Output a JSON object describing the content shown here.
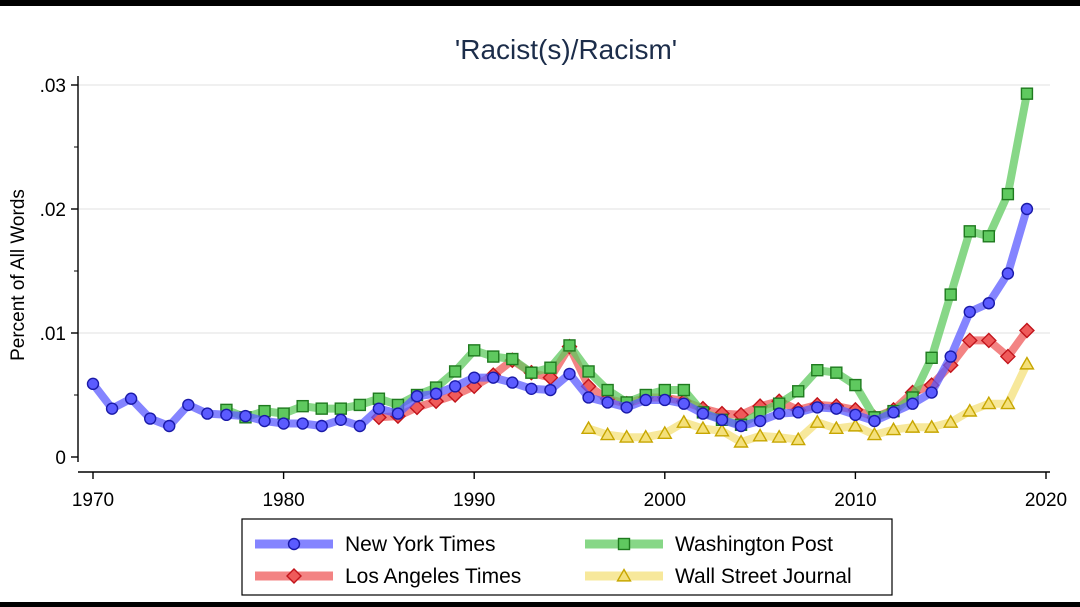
{
  "chart_data": {
    "type": "line",
    "title": "'Racist(s)/Racism'",
    "xlabel": "",
    "ylabel": "Percent of All Words",
    "xlim": [
      1970,
      2020
    ],
    "ylim": [
      0,
      0.03
    ],
    "xticks": [
      1970,
      1980,
      1990,
      2000,
      2010,
      2020
    ],
    "xtick_labels": [
      "1970",
      "1980",
      "1990",
      "2000",
      "2010",
      "2020"
    ],
    "yticks": [
      0,
      0.01,
      0.02,
      0.03
    ],
    "ytick_labels": [
      "0",
      ".01",
      ".02",
      ".03"
    ],
    "grid": true,
    "legend_position": "bottom",
    "series": [
      {
        "name": "New York Times",
        "color": "#5b5bff",
        "marker": "circle",
        "x": [
          1970,
          1971,
          1972,
          1973,
          1974,
          1975,
          1976,
          1977,
          1978,
          1979,
          1980,
          1981,
          1982,
          1983,
          1984,
          1985,
          1986,
          1987,
          1988,
          1989,
          1990,
          1991,
          1992,
          1993,
          1994,
          1995,
          1996,
          1997,
          1998,
          1999,
          2000,
          2001,
          2002,
          2003,
          2004,
          2005,
          2006,
          2007,
          2008,
          2009,
          2010,
          2011,
          2012,
          2013,
          2014,
          2015,
          2016,
          2017,
          2018,
          2019
        ],
        "values": [
          0.0059,
          0.0039,
          0.0047,
          0.0031,
          0.0025,
          0.0042,
          0.0035,
          0.0034,
          0.0033,
          0.0029,
          0.0027,
          0.0027,
          0.0025,
          0.003,
          0.0025,
          0.0039,
          0.0035,
          0.0049,
          0.0051,
          0.0057,
          0.0064,
          0.0064,
          0.006,
          0.0055,
          0.0054,
          0.0067,
          0.0048,
          0.0044,
          0.004,
          0.0046,
          0.0046,
          0.0043,
          0.0035,
          0.003,
          0.0025,
          0.0029,
          0.0035,
          0.0036,
          0.004,
          0.0039,
          0.0034,
          0.0029,
          0.0036,
          0.0043,
          0.0052,
          0.0081,
          0.0117,
          0.0124,
          0.0148,
          0.02
        ]
      },
      {
        "name": "Washington Post",
        "color": "#5fc95f",
        "marker": "square",
        "x": [
          1977,
          1978,
          1979,
          1980,
          1981,
          1982,
          1983,
          1984,
          1985,
          1986,
          1987,
          1988,
          1989,
          1990,
          1991,
          1992,
          1993,
          1994,
          1995,
          1996,
          1997,
          1998,
          1999,
          2000,
          2001,
          2002,
          2003,
          2004,
          2005,
          2006,
          2007,
          2008,
          2009,
          2010,
          2011,
          2012,
          2013,
          2014,
          2015,
          2016,
          2017,
          2018,
          2019
        ],
        "values": [
          0.0038,
          0.0032,
          0.0037,
          0.0035,
          0.0041,
          0.0039,
          0.0039,
          0.0042,
          0.0047,
          0.0042,
          0.005,
          0.0056,
          0.0069,
          0.0086,
          0.0081,
          0.0079,
          0.0068,
          0.0072,
          0.009,
          0.0069,
          0.0054,
          0.0044,
          0.005,
          0.0054,
          0.0054,
          0.0036,
          0.003,
          0.0026,
          0.0036,
          0.0043,
          0.0053,
          0.007,
          0.0068,
          0.0058,
          0.0032,
          0.0037,
          0.0048,
          0.008,
          0.0131,
          0.0182,
          0.0178,
          0.0212,
          0.0293
        ]
      },
      {
        "name": "Los Angeles Times",
        "color": "#ef5a5a",
        "marker": "diamond",
        "x": [
          1985,
          1986,
          1987,
          1988,
          1989,
          1990,
          1991,
          1992,
          1993,
          1994,
          1995,
          1996,
          1997,
          1998,
          1999,
          2000,
          2001,
          2002,
          2003,
          2004,
          2005,
          2006,
          2007,
          2008,
          2009,
          2010,
          2011,
          2012,
          2013,
          2014,
          2015,
          2016,
          2017,
          2018,
          2019
        ],
        "values": [
          0.0032,
          0.0033,
          0.004,
          0.0045,
          0.005,
          0.0057,
          0.0066,
          0.0078,
          0.0068,
          0.0064,
          0.0089,
          0.0057,
          0.0047,
          0.0043,
          0.0048,
          0.0048,
          0.0045,
          0.0039,
          0.0035,
          0.0034,
          0.0041,
          0.0045,
          0.0038,
          0.0042,
          0.0041,
          0.0038,
          0.0032,
          0.0038,
          0.0052,
          0.0058,
          0.0074,
          0.0094,
          0.0094,
          0.0081,
          0.0102
        ]
      },
      {
        "name": "Wall Street Journal",
        "color": "#f4e07a",
        "marker": "triangle",
        "x": [
          1996,
          1997,
          1998,
          1999,
          2000,
          2001,
          2002,
          2003,
          2004,
          2005,
          2006,
          2007,
          2008,
          2009,
          2010,
          2011,
          2012,
          2013,
          2014,
          2015,
          2016,
          2017,
          2018,
          2019
        ],
        "values": [
          0.0023,
          0.0018,
          0.0016,
          0.0016,
          0.0019,
          0.0028,
          0.0023,
          0.0021,
          0.0012,
          0.0017,
          0.0016,
          0.0014,
          0.0028,
          0.0023,
          0.0025,
          0.0018,
          0.0022,
          0.0024,
          0.0024,
          0.0028,
          0.0037,
          0.0043,
          0.0043,
          0.0075
        ]
      }
    ],
    "legend_order": [
      0,
      1,
      2,
      3
    ]
  }
}
